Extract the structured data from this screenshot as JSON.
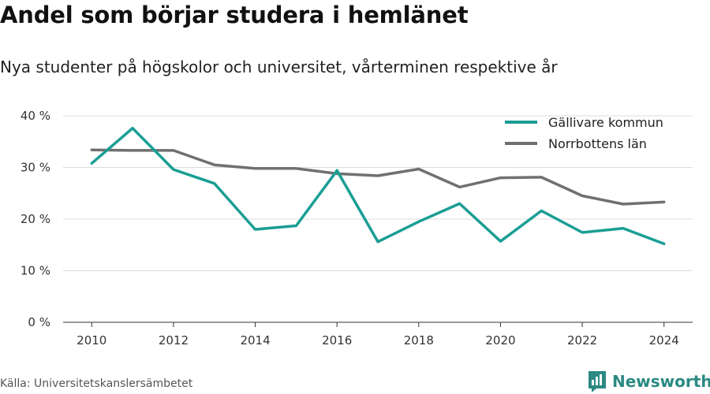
{
  "header": {
    "title": "Andel som börjar studera i hemlänet",
    "subtitle": "Nya studenter på högskolor och universitet, vårterminen respektive år"
  },
  "footer": {
    "source": "Källa: Universitetskanslersämbetet",
    "brand": "Newsworthy",
    "brand_color": "#2b8a82",
    "brand_icon": "newsworthy-logo-icon"
  },
  "chart_data": {
    "type": "line",
    "x": [
      2010,
      2011,
      2012,
      2013,
      2014,
      2015,
      2016,
      2017,
      2018,
      2019,
      2020,
      2021,
      2022,
      2023,
      2024
    ],
    "x_ticks": [
      2010,
      2012,
      2014,
      2016,
      2018,
      2020,
      2022,
      2024
    ],
    "y_ticks": [
      0,
      10,
      20,
      30,
      40
    ],
    "y_tick_labels": [
      "0 %",
      "10 %",
      "20 %",
      "30 %",
      "40 %"
    ],
    "ylim": [
      0,
      40
    ],
    "xlim": [
      2009.3,
      2024.7
    ],
    "grid": true,
    "legend_position": "top-right",
    "series": [
      {
        "name": "Gällivare kommun",
        "color": "#1a9e94",
        "values": [
          30.8,
          37.6,
          29.6,
          26.9,
          18.0,
          18.7,
          29.4,
          15.6,
          19.5,
          23.0,
          15.7,
          21.6,
          17.4,
          18.2,
          15.2
        ]
      },
      {
        "name": "Norrbottens län",
        "color": "#707070",
        "values": [
          33.4,
          33.3,
          33.3,
          30.5,
          29.8,
          29.8,
          28.8,
          28.4,
          29.7,
          26.2,
          28.0,
          28.1,
          24.5,
          22.9,
          23.3
        ]
      }
    ]
  }
}
